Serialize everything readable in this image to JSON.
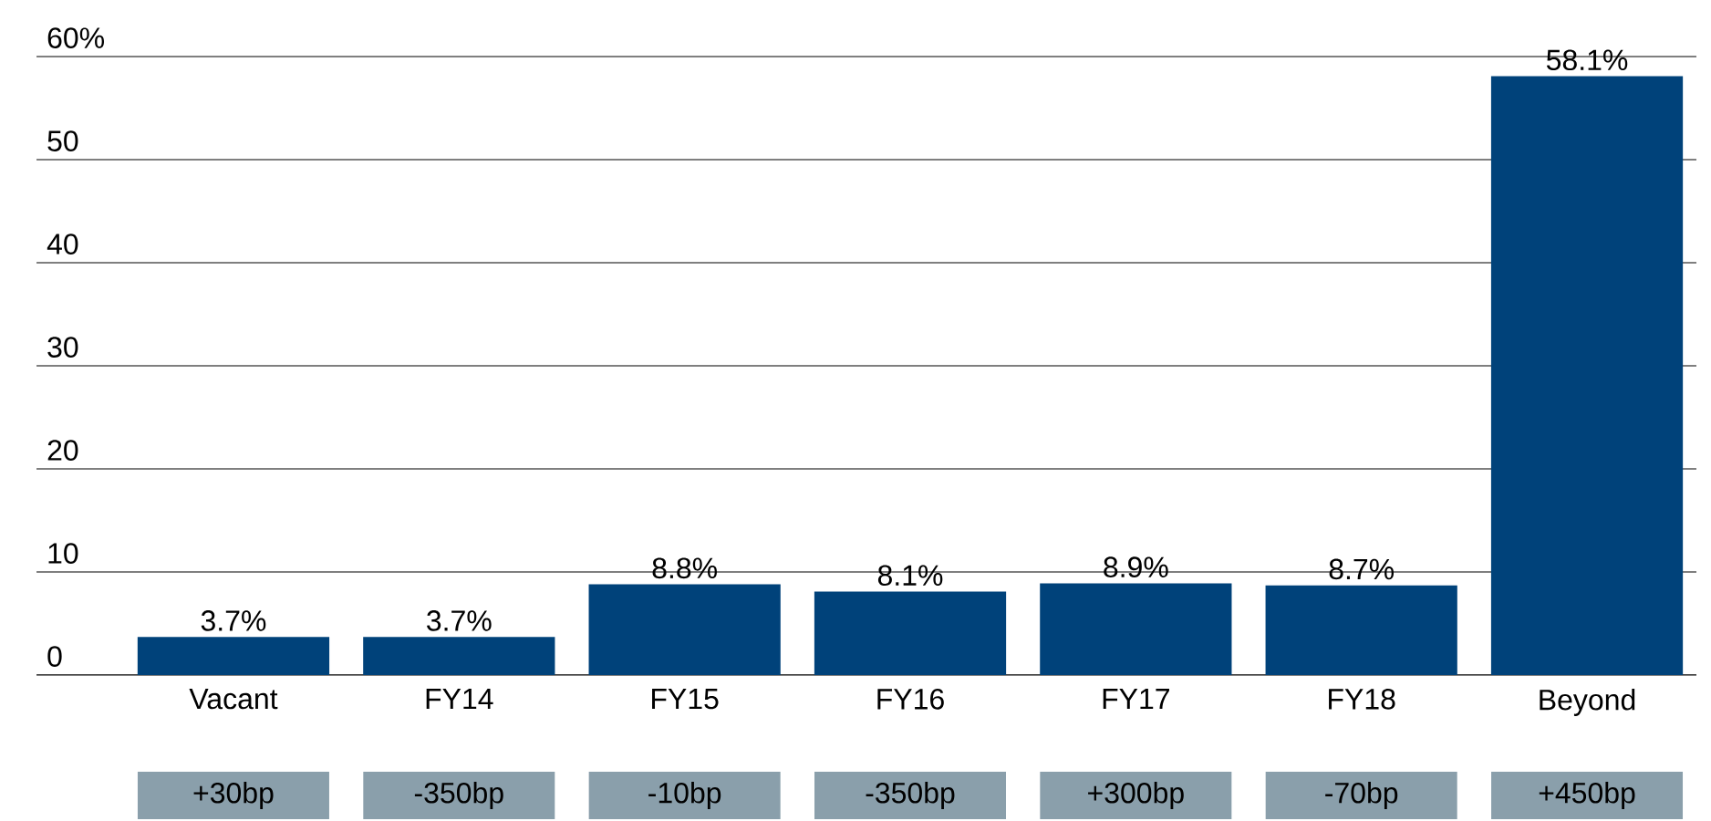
{
  "chart_data": {
    "type": "bar",
    "categories": [
      "Vacant",
      "FY14",
      "FY15",
      "FY16",
      "FY17",
      "FY18",
      "Beyond"
    ],
    "values": [
      3.7,
      3.7,
      8.8,
      8.1,
      8.9,
      8.7,
      58.1
    ],
    "value_labels": [
      "3.7%",
      "3.7%",
      "8.8%",
      "8.1%",
      "8.9%",
      "8.7%",
      "58.1%"
    ],
    "color": "#00427a",
    "ylim": [
      0,
      60
    ],
    "yticks": [
      0,
      10,
      20,
      30,
      40,
      50,
      {
        "value": 60,
        "label": "60%"
      }
    ],
    "grid": "y",
    "annotations": [
      "+30bp",
      "-350bp",
      "-10bp",
      "-350bp",
      "+300bp",
      "-70bp",
      "+450bp"
    ]
  }
}
